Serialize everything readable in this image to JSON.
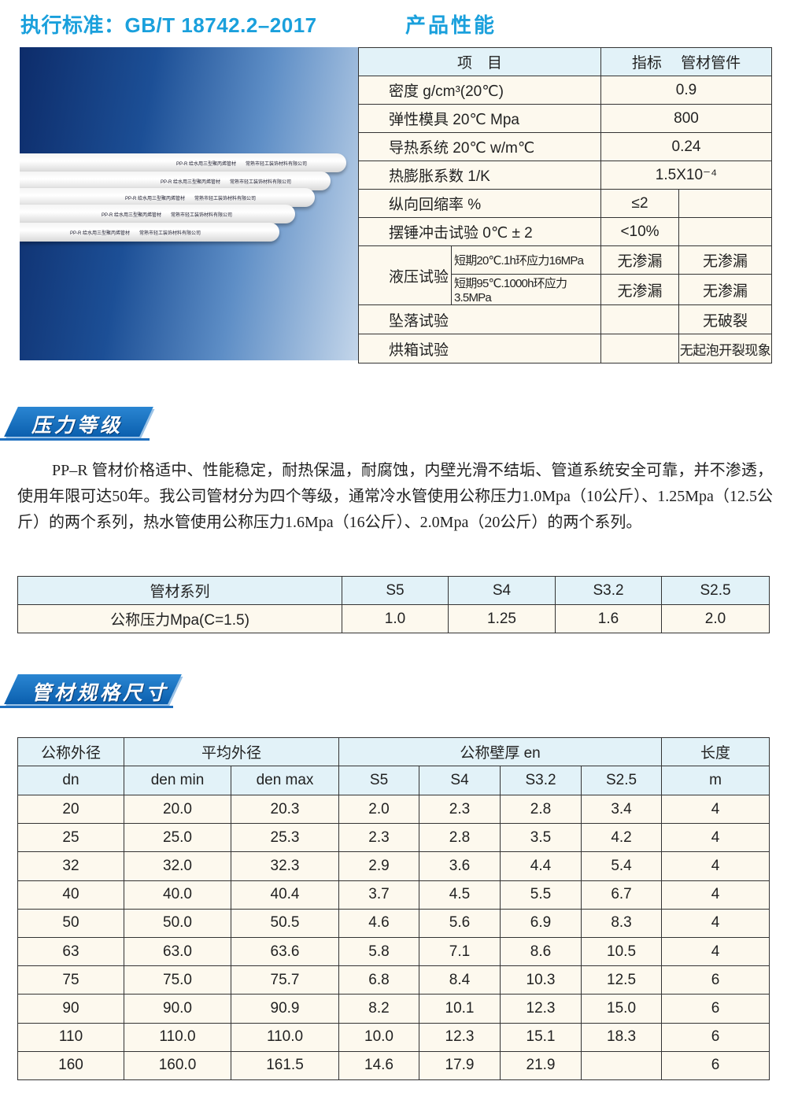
{
  "header": {
    "standard": "执行标准：GB/T 18742.2–2017",
    "section_title": "产品性能"
  },
  "photo": {
    "pipe_labels": [
      "PP-R 给水用三型聚丙烯管材　　常熟市轻工装饰材料有限公司",
      "PP-R 给水用三型聚丙烯管材　　常熟市轻工装饰材料有限公司",
      "PP-R 给水用三型聚丙烯管材　　常熟市轻工装饰材料有限公司",
      "PP-R 给水用三型聚丙烯管材　　常熟市轻工装饰材料有限公司",
      "PP-R 给水用三型聚丙烯管材　　常熟市轻工装饰材料有限公司"
    ]
  },
  "performance": {
    "headers": [
      "项　目",
      "指标　 管材管件"
    ],
    "rows": [
      {
        "item": "密度  g/cm³(20℃)",
        "value": "0.9"
      },
      {
        "item": "弹性模具 20℃ Mpa",
        "value": "800"
      },
      {
        "item": "导热系统 20℃ w/m℃",
        "value": "0.24"
      },
      {
        "item": "热膨胀系数 1/K",
        "value": "1.5X10⁻⁴"
      },
      {
        "item": "纵向回缩率 %",
        "pipe": "≤2",
        "fitting": ""
      },
      {
        "item": "摆锤冲击试验 0℃ ± 2",
        "pipe": "<10%",
        "fitting": ""
      }
    ],
    "hydraulic": {
      "item": "液压试验",
      "sub": [
        {
          "cond": "短期20℃.1h环应力16MPa",
          "pipe": "无渗漏",
          "fitting": "无渗漏"
        },
        {
          "cond": "短期95℃.1000h环应力3.5MPa",
          "pipe": "无渗漏",
          "fitting": "无渗漏"
        }
      ]
    },
    "tail": [
      {
        "item": "坠落试验",
        "pipe": "",
        "fitting": "无破裂"
      },
      {
        "item": "烘箱试验",
        "pipe": "",
        "fitting": "无起泡开裂现象"
      }
    ]
  },
  "pressure_section": {
    "title": "压力等级",
    "paragraph": "PP–R 管材价格适中、性能稳定，耐热保温，耐腐蚀，内壁光滑不结垢、管道系统安全可靠，并不渗透，使用年限可达50年。我公司管材分为四个等级，通常冷水管使用公称压力1.0Mpa（10公斤）、1.25Mpa（12.5公斤）的两个系列，热水管使用公称压力1.6Mpa（16公斤）、2.0Mpa（20公斤）的两个系列。",
    "table": {
      "rows": [
        [
          "管材系列",
          "S5",
          "S4",
          "S3.2",
          "S2.5"
        ],
        [
          "公称压力Mpa(C=1.5)",
          "1.0",
          "1.25",
          "1.6",
          "2.0"
        ]
      ]
    }
  },
  "size_section": {
    "title": "管材规格尺寸",
    "header1": [
      "公称外径",
      "平均外径",
      "公称壁厚  en",
      "长度"
    ],
    "header2": [
      "dn",
      "den   min",
      "den   max",
      "S5",
      "S4",
      "S3.2",
      "S2.5",
      "m"
    ],
    "rows": [
      [
        "20",
        "20.0",
        "20.3",
        "2.0",
        "2.3",
        "2.8",
        "3.4",
        "4"
      ],
      [
        "25",
        "25.0",
        "25.3",
        "2.3",
        "2.8",
        "3.5",
        "4.2",
        "4"
      ],
      [
        "32",
        "32.0",
        "32.3",
        "2.9",
        "3.6",
        "4.4",
        "5.4",
        "4"
      ],
      [
        "40",
        "40.0",
        "40.4",
        "3.7",
        "4.5",
        "5.5",
        "6.7",
        "4"
      ],
      [
        "50",
        "50.0",
        "50.5",
        "4.6",
        "5.6",
        "6.9",
        "8.3",
        "4"
      ],
      [
        "63",
        "63.0",
        "63.6",
        "5.8",
        "7.1",
        "8.6",
        "10.5",
        "4"
      ],
      [
        "75",
        "75.0",
        "75.7",
        "6.8",
        "8.4",
        "10.3",
        "12.5",
        "6"
      ],
      [
        "90",
        "90.0",
        "90.9",
        "8.2",
        "10.1",
        "12.3",
        "15.0",
        "6"
      ],
      [
        "110",
        "110.0",
        "110.0",
        "10.0",
        "12.3",
        "15.1",
        "18.3",
        "6"
      ],
      [
        "160",
        "160.0",
        "161.5",
        "14.6",
        "17.9",
        "21.9",
        "",
        "6"
      ]
    ]
  }
}
